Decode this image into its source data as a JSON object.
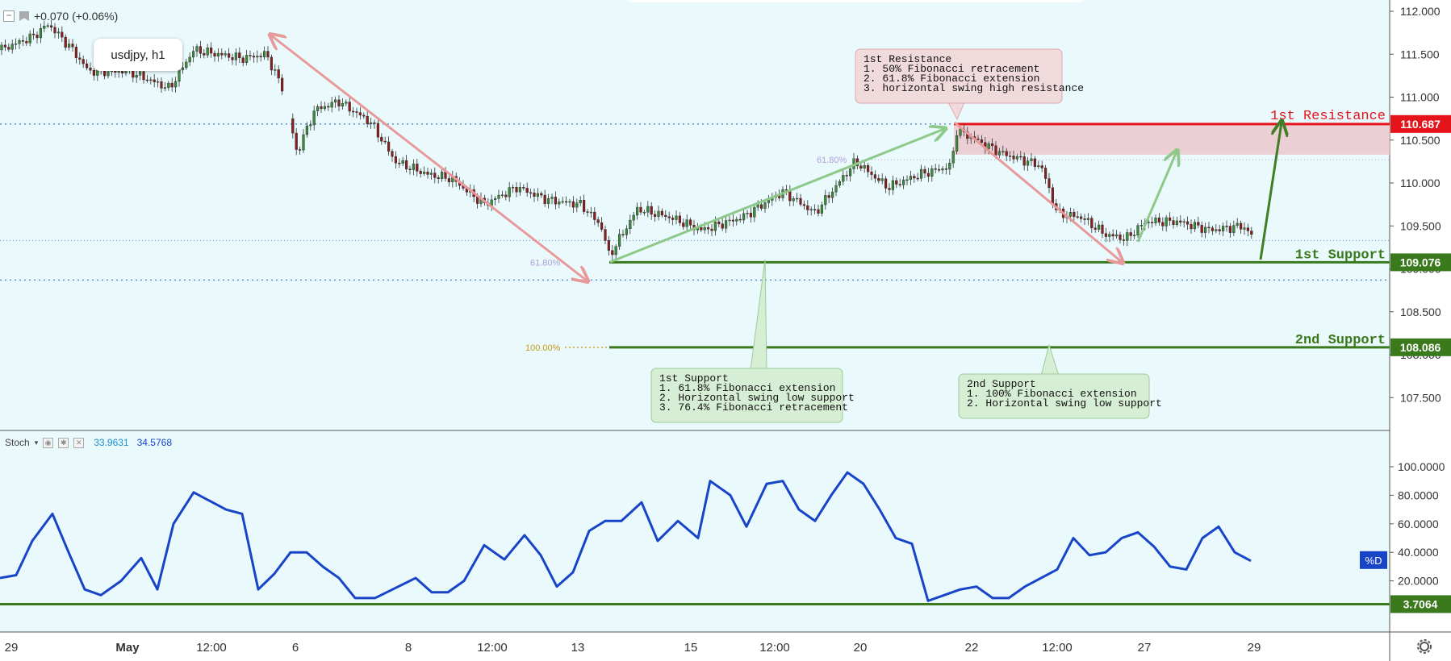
{
  "header": {
    "change_text": "+0.070 (+0.06%)",
    "symbol_label": "usdjpy, h1"
  },
  "colors": {
    "background": "#e9f9fc",
    "resistance": "#e5141a",
    "support": "#3b7a1c",
    "stoch_line": "#1844c8",
    "arrow_red": "#e89a9a",
    "arrow_green": "#8ec98a",
    "arrow_dark_green": "#3f7e24"
  },
  "chart_data": [
    {
      "type": "candlestick",
      "title": "usdjpy, h1",
      "x_tick_labels": [
        "29",
        "May",
        "12:00",
        "6",
        "8",
        "12:00",
        "13",
        "15",
        "12:00",
        "20",
        "22",
        "12:00",
        "27",
        "29"
      ],
      "y_tick_labels": [
        "112.000",
        "111.500",
        "111.000",
        "110.500",
        "110.000",
        "109.500",
        "109.000",
        "108.500",
        "108.000",
        "107.500"
      ],
      "ylim": [
        107.3,
        112.05
      ],
      "levels": [
        {
          "name": "1st Resistance",
          "value": 110.687
        },
        {
          "name": "1st Support",
          "value": 109.076
        },
        {
          "name": "2nd Support",
          "value": 108.086
        }
      ],
      "fib_labels": [
        "61.80%",
        "61.80%",
        "100.00%"
      ],
      "price_path": [
        [
          0,
          111.55
        ],
        [
          40,
          111.7
        ],
        [
          60,
          111.85
        ],
        [
          90,
          111.55
        ],
        [
          110,
          111.3
        ],
        [
          160,
          111.3
        ],
        [
          210,
          111.1
        ],
        [
          240,
          111.55
        ],
        [
          300,
          111.45
        ],
        [
          330,
          111.5
        ],
        [
          350,
          111.1
        ],
        [
          368,
          110.35
        ],
        [
          390,
          110.85
        ],
        [
          420,
          110.95
        ],
        [
          460,
          110.7
        ],
        [
          490,
          110.25
        ],
        [
          530,
          110.1
        ],
        [
          560,
          110.05
        ],
        [
          600,
          109.75
        ],
        [
          640,
          109.95
        ],
        [
          680,
          109.8
        ],
        [
          720,
          109.75
        ],
        [
          745,
          109.5
        ],
        [
          755,
          109.15
        ],
        [
          790,
          109.7
        ],
        [
          830,
          109.6
        ],
        [
          870,
          109.45
        ],
        [
          920,
          109.6
        ],
        [
          970,
          109.9
        ],
        [
          1010,
          109.65
        ],
        [
          1060,
          110.25
        ],
        [
          1100,
          109.95
        ],
        [
          1140,
          110.1
        ],
        [
          1180,
          110.2
        ],
        [
          1183,
          110.62
        ],
        [
          1200,
          110.55
        ],
        [
          1240,
          110.35
        ],
        [
          1290,
          110.2
        ],
        [
          1310,
          109.65
        ],
        [
          1340,
          109.6
        ],
        [
          1370,
          109.4
        ],
        [
          1395,
          109.35
        ],
        [
          1420,
          109.55
        ],
        [
          1460,
          109.55
        ],
        [
          1500,
          109.45
        ],
        [
          1540,
          109.5
        ],
        [
          1555,
          109.35
        ]
      ]
    },
    {
      "type": "line",
      "title": "Stoch",
      "legend_values": [
        "33.9631",
        "34.5768"
      ],
      "series": [
        {
          "name": "%D"
        }
      ],
      "y_tick_labels": [
        "100.0000",
        "80.0000",
        "60.0000",
        "40.0000",
        "20.0000"
      ],
      "ylim": [
        0,
        103
      ],
      "reference_value": 3.7064,
      "reference_label": "3.7064",
      "x": [
        0,
        20,
        40,
        65,
        85,
        105,
        125,
        150,
        175,
        195,
        215,
        240,
        260,
        280,
        300,
        320,
        340,
        360,
        380,
        400,
        420,
        440,
        465,
        490,
        515,
        535,
        555,
        575,
        600,
        625,
        650,
        670,
        690,
        710,
        730,
        750,
        770,
        795,
        815,
        840,
        865,
        880,
        905,
        925,
        950,
        970,
        990,
        1010,
        1030,
        1050,
        1070,
        1090,
        1110,
        1130,
        1150,
        1170,
        1190,
        1210,
        1230,
        1250,
        1270,
        1290,
        1310,
        1330,
        1350,
        1370,
        1390,
        1410,
        1430,
        1450,
        1470,
        1490,
        1510,
        1530,
        1550
      ],
      "values": [
        22,
        24,
        48,
        67,
        40,
        14,
        10,
        20,
        36,
        14,
        60,
        82,
        76,
        70,
        67,
        14,
        25,
        40,
        40,
        30,
        22,
        8,
        8,
        15,
        22,
        12,
        12,
        20,
        45,
        35,
        52,
        38,
        16,
        26,
        55,
        62,
        62,
        75,
        48,
        62,
        50,
        90,
        80,
        58,
        88,
        90,
        70,
        62,
        80,
        96,
        88,
        70,
        50,
        46,
        6,
        10,
        14,
        16,
        8,
        8,
        16,
        22,
        28,
        50,
        38,
        40,
        50,
        54,
        44,
        30,
        28,
        50,
        58,
        40,
        34
      ]
    }
  ],
  "annotations": {
    "res1": {
      "title": "1st Resistance",
      "lines": [
        "1. 50% Fibonacci retracement",
        "2. 61.8% Fibonacci extension",
        "3. horizontal swing high resistance"
      ]
    },
    "sup1": {
      "title": "1st Support",
      "lines": [
        "1. 61.8% Fibonacci extension",
        "2. Horizontal swing low support",
        "3. 76.4% Fibonacci retracement"
      ]
    },
    "sup2": {
      "title": "2nd Support",
      "lines": [
        "1. 100% Fibonacci extension",
        "2. Horizontal swing low support"
      ]
    }
  }
}
